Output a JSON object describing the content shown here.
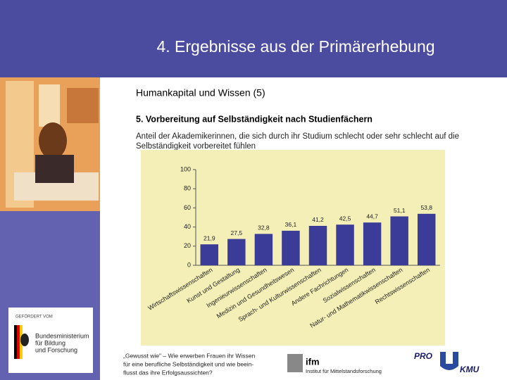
{
  "slide": {
    "title": "4. Ergebnisse aus der Primärerhebung",
    "heading": "Humankapital und Wissen (5)",
    "subheading": "5. Vorbereitung auf Selbständigkeit nach Studienfächern",
    "description_lines": [
      "Anteil der Akademikerinnen, die sich durch ihr Studium schlecht oder sehr schlecht auf die",
      "Selbständigkeit vorbereitet fühlen"
    ],
    "sponsor_label": "GEFÖRDERT VOM",
    "sponsor_lines": [
      "Bundesministerium",
      "für Bildung",
      "und Forschung"
    ],
    "footer_lines": [
      "„Gewusst wie\" – Wie erwerben Frauen ihr Wissen",
      "für eine berufliche Selbständigkeit und wie beein-",
      "flusst das ihre Erfolgsaussichten?"
    ],
    "ifm_logo": "ifm",
    "ifm_name": "Institut für Mittelstandsforschung",
    "pro_logo": "PRO",
    "kmu_logo": "KMU"
  },
  "chart_data": {
    "type": "bar",
    "categories": [
      "Wirtschaftswissenschaften",
      "Kunst und Gestaltung",
      "Ingenieurwissenschaften",
      "Medizin und Gesundheitswesen",
      "Sprach- und Kulturwissenschaften",
      "Andere Fachrichtungen",
      "Sozialwissenschaften",
      "Natur- und Mathematikwissenschaften",
      "Rechtswissenschaften"
    ],
    "values": [
      21.9,
      27.5,
      32.8,
      36.1,
      41.2,
      42.5,
      44.7,
      51.1,
      53.8
    ],
    "value_labels": [
      "21,9",
      "27,5",
      "32,8",
      "36,1",
      "41,2",
      "42,5",
      "44,7",
      "51,1",
      "53,8"
    ],
    "color": "#3b3b98",
    "ylim": [
      0,
      100
    ],
    "yticks": [
      0,
      20,
      40,
      60,
      80,
      100
    ]
  }
}
